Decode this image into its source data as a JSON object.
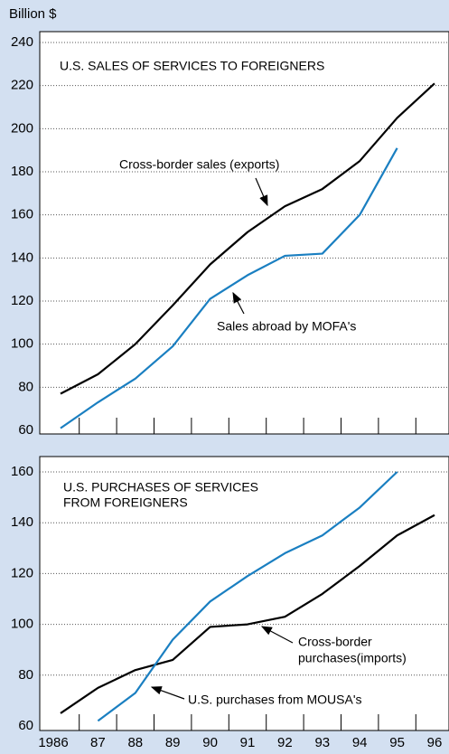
{
  "y_label": "Billion $",
  "chart_data": [
    {
      "type": "line",
      "title": [
        "U.S. SALES OF SERVICES TO FOREIGNERS"
      ],
      "ylim": [
        60,
        240
      ],
      "yticks": [
        60,
        80,
        100,
        120,
        140,
        160,
        180,
        200,
        220,
        240
      ],
      "grid": true,
      "series": [
        {
          "name": "Cross-border sales (exports)",
          "color": "#000000",
          "values": [
            77,
            86,
            100,
            118,
            137,
            152,
            164,
            172,
            185,
            205,
            221
          ]
        },
        {
          "name": "Sales abroad by MOFA's",
          "color": "#1a7fc1",
          "values": [
            61,
            73,
            84,
            99,
            121,
            132,
            141,
            142,
            160,
            191,
            null
          ]
        }
      ]
    },
    {
      "type": "line",
      "title": [
        "U.S. PURCHASES OF SERVICES",
        "FROM FOREIGNERS"
      ],
      "categories": [
        "1986",
        "87",
        "88",
        "89",
        "90",
        "91",
        "92",
        "93",
        "94",
        "95",
        "96"
      ],
      "ylim": [
        60,
        160
      ],
      "yticks": [
        60,
        80,
        100,
        120,
        140,
        160
      ],
      "grid": true,
      "series": [
        {
          "name": [
            "Cross-border",
            "purchases(imports)"
          ],
          "color": "#000000",
          "values": [
            65,
            75,
            82,
            86,
            99,
            100,
            103,
            112,
            123,
            135,
            143
          ]
        },
        {
          "name": "U.S. purchases from MOUSA's",
          "color": "#1a7fc1",
          "values": [
            null,
            62,
            73,
            94,
            109,
            119,
            128,
            135,
            146,
            160,
            null
          ]
        }
      ]
    }
  ]
}
